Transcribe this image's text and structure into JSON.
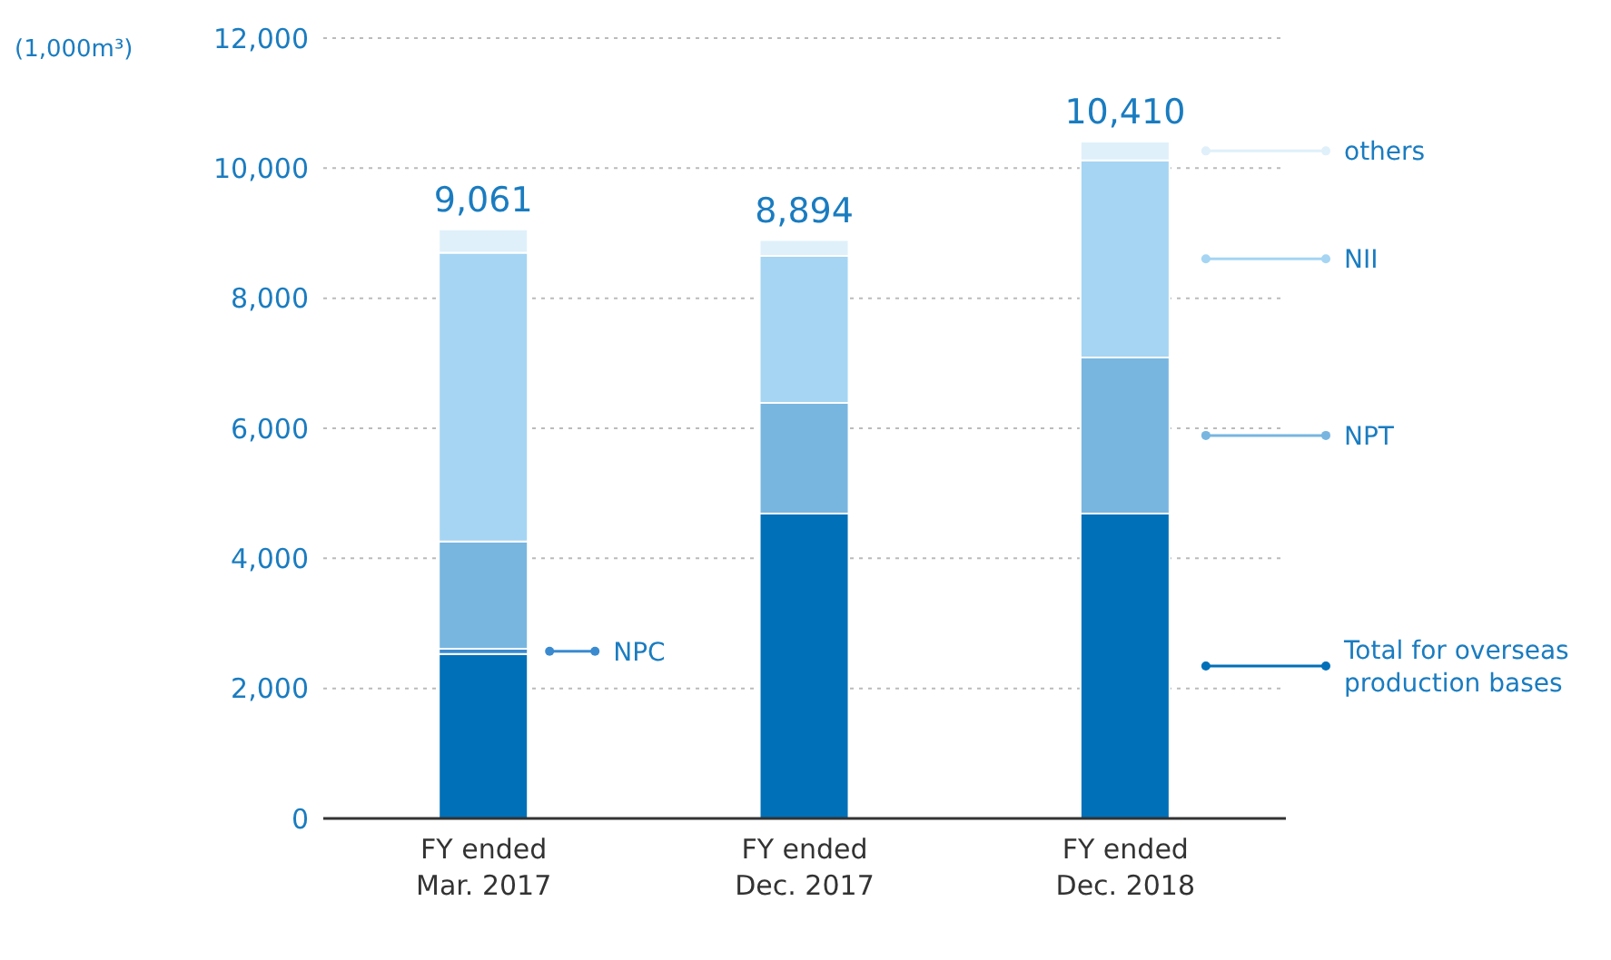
{
  "chart_data": {
    "type": "bar",
    "ylabel": "(1,000m³)",
    "stacked": true,
    "categories": [
      "FY ended Mar. 2017",
      "FY ended Dec. 2017",
      "FY ended Dec. 2018"
    ],
    "series": [
      {
        "name": "Total for overseas production bases",
        "color": "#0070b8",
        "values": [
          2530,
          4690,
          4690
        ]
      },
      {
        "name": "NPC",
        "color": "#3a8ad0",
        "values": [
          80,
          0,
          0
        ]
      },
      {
        "name": "NPT",
        "color": "#78b6e0",
        "values": [
          1650,
          1700,
          2400
        ]
      },
      {
        "name": "NII",
        "color": "#a5d5f3",
        "values": [
          4440,
          2260,
          3030
        ]
      },
      {
        "name": "others",
        "color": "#dff0fa",
        "values": [
          361,
          244,
          290
        ]
      }
    ],
    "totals": [
      "9,061",
      "8,894",
      "10,410"
    ],
    "ylim": [
      0,
      12000
    ],
    "yticks": [
      0,
      {
        "value": 2000,
        "label": "2,000"
      },
      {
        "value": 4000,
        "label": "4,000"
      },
      {
        "value": 6000,
        "label": "6,000"
      },
      {
        "value": 8000,
        "label": "8,000"
      },
      {
        "value": 10000,
        "label": "10,000"
      },
      {
        "value": 12000,
        "label": "12,000"
      }
    ],
    "grid": "y",
    "legend": "right"
  }
}
